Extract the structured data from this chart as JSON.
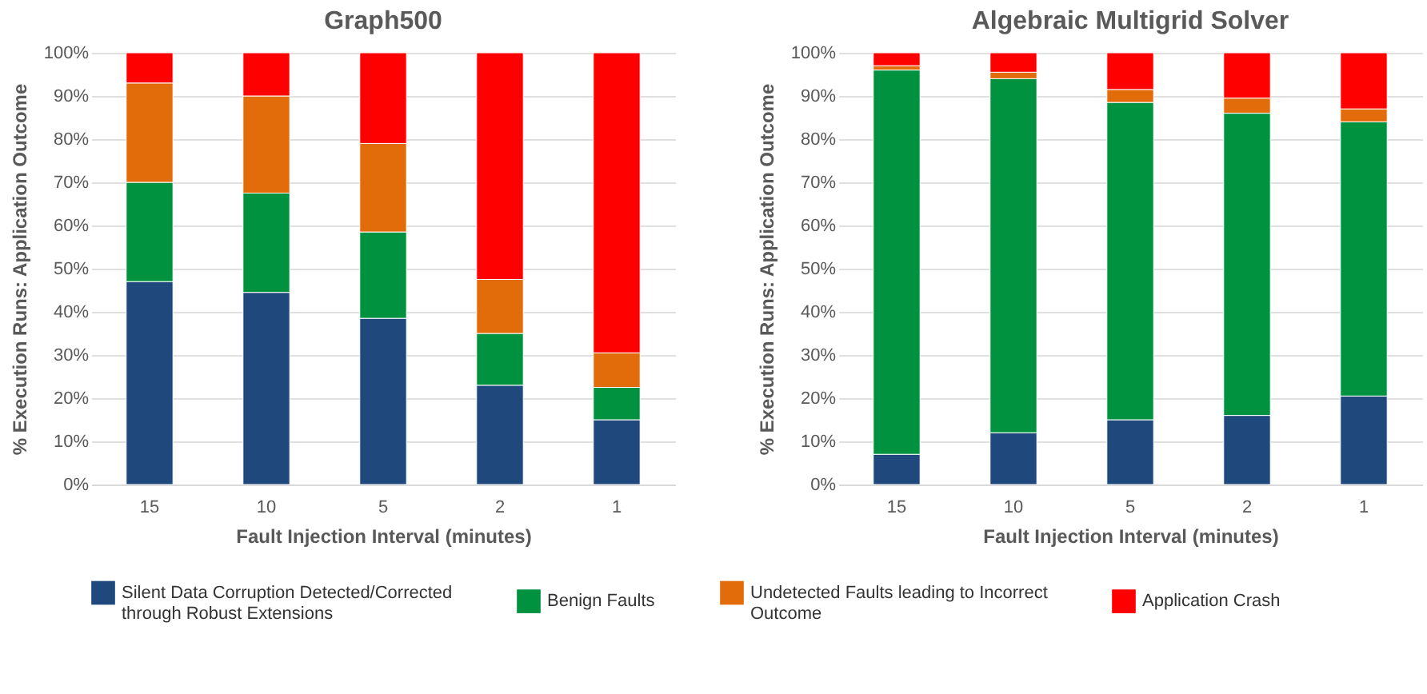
{
  "chart_data": [
    {
      "type": "bar",
      "title": "Graph500",
      "xlabel": "Fault Injection Interval (minutes)",
      "ylabel": "% Execution Runs: Application Outcome",
      "categories": [
        "15",
        "10",
        "5",
        "2",
        "1"
      ],
      "stacked": true,
      "ylim": [
        0,
        100
      ],
      "yticks": [
        {
          "value": 0,
          "label": "0%"
        },
        {
          "value": 10,
          "label": "10%"
        },
        {
          "value": 20,
          "label": "20%"
        },
        {
          "value": 30,
          "label": "30%"
        },
        {
          "value": 40,
          "label": "40%"
        },
        {
          "value": 50,
          "label": "50%"
        },
        {
          "value": 60,
          "label": "60%"
        },
        {
          "value": 70,
          "label": "70%"
        },
        {
          "value": 80,
          "label": "80%"
        },
        {
          "value": 90,
          "label": "90%"
        },
        {
          "value": 100,
          "label": "100%"
        }
      ],
      "grid": "y",
      "legend": "bottom",
      "series": [
        {
          "name": "Silent Data Corruption Detected/Corrected through Robust Extensions",
          "color": "#1f497d",
          "values": [
            47,
            44.5,
            38.5,
            23,
            15
          ]
        },
        {
          "name": "Benign Faults",
          "color": "#00923f",
          "values": [
            23,
            23,
            20,
            12,
            7.5
          ]
        },
        {
          "name": "Undetected Faults leading to Incorrect Outcome",
          "color": "#e36c0a",
          "values": [
            23,
            22.5,
            20.5,
            12.5,
            8
          ]
        },
        {
          "name": "Application Crash",
          "color": "#ff0000",
          "values": [
            7,
            10,
            21,
            52.5,
            69.5
          ]
        }
      ]
    },
    {
      "type": "bar",
      "title": "Algebraic Multigrid Solver",
      "xlabel": "Fault Injection Interval (minutes)",
      "ylabel": "% Execution Runs: Application Outcome",
      "categories": [
        "15",
        "10",
        "5",
        "2",
        "1"
      ],
      "stacked": true,
      "ylim": [
        0,
        100
      ],
      "yticks": [
        {
          "value": 0,
          "label": "0%"
        },
        {
          "value": 10,
          "label": "10%"
        },
        {
          "value": 20,
          "label": "20%"
        },
        {
          "value": 30,
          "label": "30%"
        },
        {
          "value": 40,
          "label": "40%"
        },
        {
          "value": 50,
          "label": "50%"
        },
        {
          "value": 60,
          "label": "60%"
        },
        {
          "value": 70,
          "label": "70%"
        },
        {
          "value": 80,
          "label": "80%"
        },
        {
          "value": 90,
          "label": "90%"
        },
        {
          "value": 100,
          "label": "100%"
        }
      ],
      "grid": "y",
      "legend": "bottom",
      "series": [
        {
          "name": "Silent Data Corruption Detected/Corrected through Robust Extensions",
          "color": "#1f497d",
          "values": [
            7,
            12,
            15,
            16,
            20.5
          ]
        },
        {
          "name": "Benign Faults",
          "color": "#00923f",
          "values": [
            89,
            82,
            73.5,
            70,
            63.5
          ]
        },
        {
          "name": "Undetected Faults leading to Incorrect Outcome",
          "color": "#e36c0a",
          "values": [
            1,
            1.5,
            3,
            3.5,
            3
          ]
        },
        {
          "name": "Application Crash",
          "color": "#ff0000",
          "values": [
            3,
            4.5,
            8.5,
            10.5,
            13
          ]
        }
      ]
    }
  ]
}
